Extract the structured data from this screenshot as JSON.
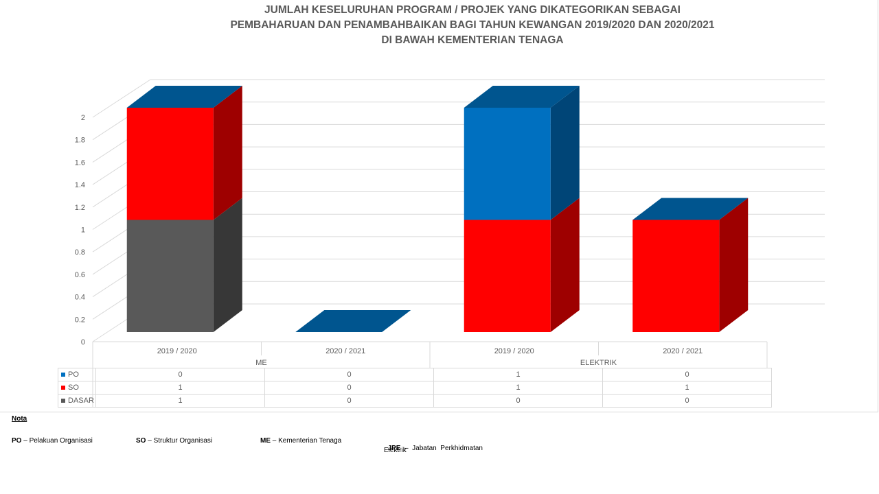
{
  "chart_data": {
    "type": "bar",
    "stacked": true,
    "three_d": true,
    "title_lines": [
      "JUMLAH KESELURUHAN PROGRAM / PROJEK YANG DIKATEGORIKAN SEBAGAI",
      "PEMBAHARUAN DAN PENAMBAHBAIKAN BAGI TAHUN KEWANGAN 2019/2020 DAN 2020/2021",
      "DI BAWAH KEMENTERIAN TENAGA"
    ],
    "categories": [
      "2019 / 2020",
      "2020 / 2021",
      "2019 / 2020",
      "2020 / 2021"
    ],
    "groups": [
      {
        "label": "ME",
        "span": [
          0,
          1
        ]
      },
      {
        "label": "ELEKTRIK",
        "span": [
          2,
          3
        ]
      }
    ],
    "series": [
      {
        "name": "DASAR",
        "values": [
          1,
          0,
          0,
          0
        ],
        "color": "#595959"
      },
      {
        "name": "SO",
        "values": [
          1,
          0,
          1,
          1
        ],
        "color": "#ff0000"
      },
      {
        "name": "PO",
        "values": [
          0,
          0,
          1,
          0
        ],
        "color": "#0070c0"
      }
    ],
    "table_order": [
      "PO",
      "SO",
      "DASAR"
    ],
    "y_ticks": [
      "0",
      "0.2",
      "0.4",
      "0.6",
      "0.8",
      "1",
      "1.2",
      "1.4",
      "1.6",
      "1.8",
      "2"
    ],
    "ylim": [
      0,
      2
    ],
    "grid": true,
    "legend": "data-table"
  },
  "nota": {
    "heading": "Nota",
    "items": [
      {
        "abbr": "PO",
        "text": " – Pelakuan Organisasi"
      },
      {
        "abbr": "SO",
        "text": " – Struktur Organisasi"
      },
      {
        "abbr": "ME",
        "text": " – Kementerian Tenaga"
      },
      {
        "abbr": "JPE",
        "text": "  –  Jabatan  Perkhidmatan"
      }
    ],
    "jpe_line2": "Elektrik"
  }
}
